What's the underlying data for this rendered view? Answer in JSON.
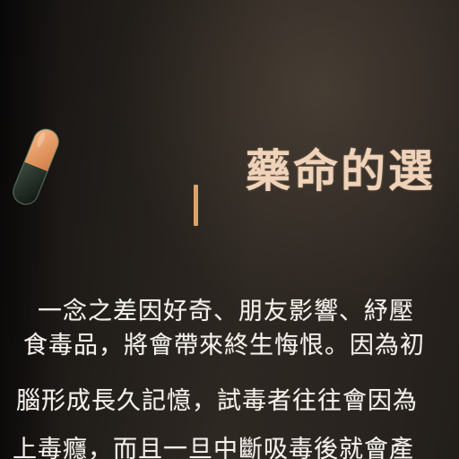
{
  "panel": {
    "title": "藥命的選",
    "paragraph": [
      "一念之差因好奇、朋友影響、紓壓",
      "食毒品，將會帶來終生悔恨。因為初",
      "腦形成長久記憶，試毒者往往會因為",
      "上毒癮，而且一旦中斷吸毒後就會產"
    ]
  },
  "colors": {
    "title": "#f0d2b8",
    "accent_bar": "#d9a46a",
    "body_text": "#f4f0ea",
    "background": "#2a2420",
    "pill_top": "#e89a62",
    "pill_bottom": "#1f2a22"
  },
  "icons": {
    "pill": "capsule-pill-icon"
  }
}
